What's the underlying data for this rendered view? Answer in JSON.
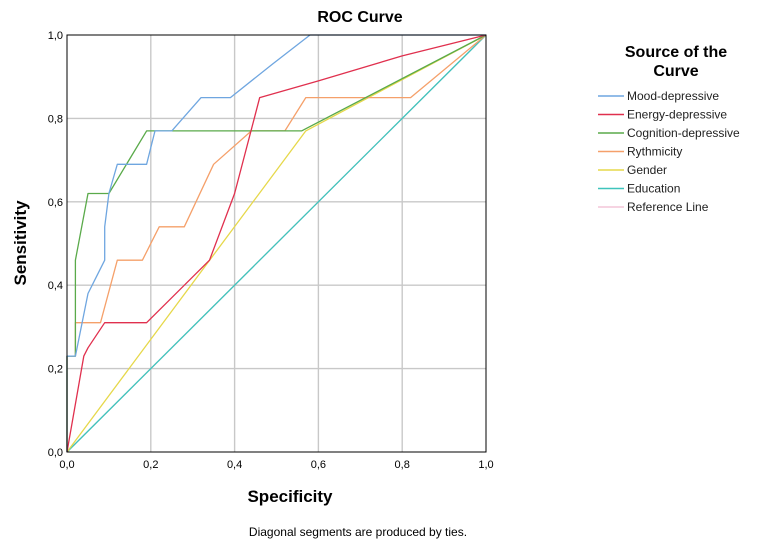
{
  "chart_data": {
    "type": "line",
    "title": "ROC Curve",
    "xlabel": "Specificity",
    "ylabel": "Sensitivity",
    "xlim": [
      0,
      1
    ],
    "ylim": [
      0,
      1
    ],
    "x_ticks": [
      "0,0",
      "0,2",
      "0,4",
      "0,6",
      "0,8",
      "1,0"
    ],
    "y_ticks": [
      "0,0",
      "0,2",
      "0,4",
      "0,6",
      "0,8",
      "1,0"
    ],
    "grid": true,
    "footnote": "Diagonal segments are produced by ties.",
    "legend": {
      "title_line1": "Source of the",
      "title_line2": "Curve",
      "placement": "right"
    },
    "series": [
      {
        "name": "Mood-depressive",
        "color": "#6fa6e0",
        "points": [
          [
            0,
            0
          ],
          [
            0,
            0.23
          ],
          [
            0.02,
            0.23
          ],
          [
            0.05,
            0.38
          ],
          [
            0.07,
            0.42
          ],
          [
            0.09,
            0.46
          ],
          [
            0.09,
            0.54
          ],
          [
            0.1,
            0.62
          ],
          [
            0.12,
            0.69
          ],
          [
            0.19,
            0.69
          ],
          [
            0.21,
            0.77
          ],
          [
            0.25,
            0.77
          ],
          [
            0.32,
            0.85
          ],
          [
            0.39,
            0.85
          ],
          [
            0.49,
            0.93
          ],
          [
            0.58,
            1.0
          ],
          [
            1.0,
            1.0
          ]
        ]
      },
      {
        "name": "Energy-depressive",
        "color": "#e0304e",
        "points": [
          [
            0,
            0
          ],
          [
            0.04,
            0.23
          ],
          [
            0.05,
            0.25
          ],
          [
            0.09,
            0.31
          ],
          [
            0.19,
            0.31
          ],
          [
            0.34,
            0.46
          ],
          [
            0.4,
            0.62
          ],
          [
            0.46,
            0.85
          ],
          [
            0.6,
            0.89
          ],
          [
            0.8,
            0.95
          ],
          [
            1.0,
            1.0
          ]
        ]
      },
      {
        "name": "Cognition-depressive",
        "color": "#5aaa4a",
        "points": [
          [
            0,
            0
          ],
          [
            0,
            0.23
          ],
          [
            0.02,
            0.23
          ],
          [
            0.02,
            0.46
          ],
          [
            0.05,
            0.62
          ],
          [
            0.1,
            0.62
          ],
          [
            0.19,
            0.77
          ],
          [
            0.56,
            0.77
          ],
          [
            1.0,
            1.0
          ]
        ]
      },
      {
        "name": "Rythmicity",
        "color": "#f5a06a",
        "points": [
          [
            0,
            0
          ],
          [
            0,
            0.23
          ],
          [
            0.02,
            0.23
          ],
          [
            0.02,
            0.31
          ],
          [
            0.08,
            0.31
          ],
          [
            0.12,
            0.46
          ],
          [
            0.18,
            0.46
          ],
          [
            0.22,
            0.54
          ],
          [
            0.28,
            0.54
          ],
          [
            0.35,
            0.69
          ],
          [
            0.44,
            0.77
          ],
          [
            0.52,
            0.77
          ],
          [
            0.57,
            0.85
          ],
          [
            0.82,
            0.85
          ],
          [
            1.0,
            1.0
          ]
        ]
      },
      {
        "name": "Gender",
        "color": "#e6d84a",
        "points": [
          [
            0,
            0
          ],
          [
            0.57,
            0.77
          ],
          [
            1.0,
            1.0
          ]
        ]
      },
      {
        "name": "Education",
        "color": "#3ec4bc",
        "points": [
          [
            0,
            0
          ],
          [
            1.0,
            1.0
          ]
        ]
      },
      {
        "name": "Reference Line",
        "color": "#f4c6d8",
        "points": [
          [
            0,
            0
          ],
          [
            1.0,
            1.0
          ]
        ]
      }
    ]
  }
}
